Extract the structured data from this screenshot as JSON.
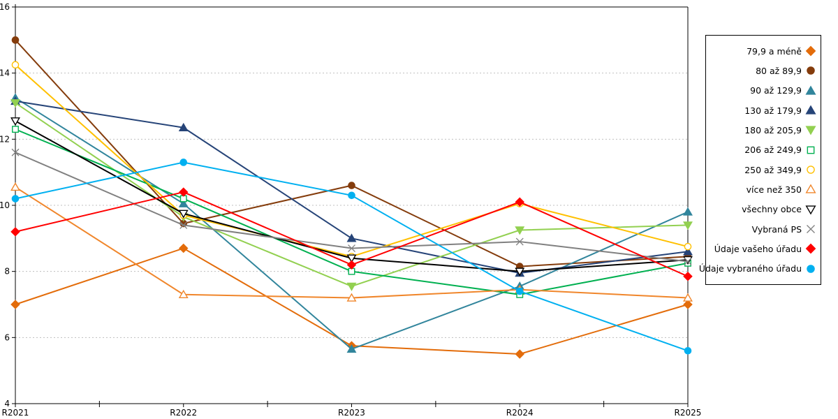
{
  "chart_data": {
    "type": "line",
    "title": "",
    "xlabel": "",
    "ylabel": "",
    "categories": [
      "R2021",
      "R2022",
      "R2023",
      "R2024",
      "R2025"
    ],
    "y_axis": {
      "min": 4,
      "max": 16,
      "step": 2,
      "tick_labels": [
        "4",
        "6",
        "8",
        "10",
        "12",
        "14",
        "16"
      ]
    },
    "grid": "horizontal-dotted",
    "legend_position": "right",
    "series": [
      {
        "name": "79,9 a méně",
        "marker": "diamond",
        "fill": "solid",
        "color": "#E36C0A",
        "values": [
          7.0,
          8.7,
          5.75,
          5.5,
          7.0
        ]
      },
      {
        "name": "80 až 89,9",
        "marker": "circle",
        "fill": "solid",
        "color": "#843C0C",
        "values": [
          15.0,
          9.45,
          10.6,
          8.15,
          8.45
        ]
      },
      {
        "name": "90 až 129,9",
        "marker": "triangle-up",
        "fill": "solid",
        "color": "#31859C",
        "values": [
          13.25,
          10.05,
          5.65,
          7.55,
          9.8
        ]
      },
      {
        "name": "130 až 179,9",
        "marker": "triangle-up",
        "fill": "solid",
        "color": "#264478",
        "values": [
          13.15,
          12.35,
          9.0,
          7.95,
          8.6
        ]
      },
      {
        "name": "180 až 205,9",
        "marker": "triangle-down",
        "fill": "solid",
        "color": "#92D050",
        "values": [
          13.1,
          9.65,
          7.55,
          9.25,
          9.4
        ]
      },
      {
        "name": "206 až 249,9",
        "marker": "square",
        "fill": "open",
        "color": "#00B050",
        "values": [
          12.3,
          10.2,
          8.0,
          7.3,
          8.25
        ]
      },
      {
        "name": "250 až 349,9",
        "marker": "circle",
        "fill": "open",
        "color": "#FFC000",
        "values": [
          14.25,
          9.7,
          8.45,
          10.05,
          8.75
        ]
      },
      {
        "name": "více než 350",
        "marker": "triangle-up",
        "fill": "open",
        "color": "#F0862B",
        "values": [
          10.55,
          7.3,
          7.2,
          7.45,
          7.2
        ]
      },
      {
        "name": "všechny obce",
        "marker": "triangle-down",
        "fill": "open",
        "color": "#000000",
        "values": [
          12.55,
          9.75,
          8.4,
          8.0,
          8.35
        ]
      },
      {
        "name": "Vybraná PS",
        "marker": "x",
        "fill": "open",
        "color": "#808080",
        "values": [
          11.6,
          9.4,
          8.7,
          8.9,
          8.3
        ]
      },
      {
        "name": "Údaje vašeho úřadu",
        "marker": "diamond",
        "fill": "solid",
        "color": "#FF0000",
        "values": [
          9.2,
          10.4,
          8.2,
          10.1,
          7.85
        ]
      },
      {
        "name": "Údaje vybraného úřadu",
        "marker": "circle",
        "fill": "solid",
        "color": "#00B0F0",
        "values": [
          10.2,
          11.3,
          10.3,
          7.4,
          5.6
        ]
      }
    ]
  },
  "colors": {
    "background": "#FFFFFF",
    "grid": "#BFBFBF",
    "axis": "#000000",
    "tick_text": "#000000",
    "legend_border": "#000000"
  }
}
